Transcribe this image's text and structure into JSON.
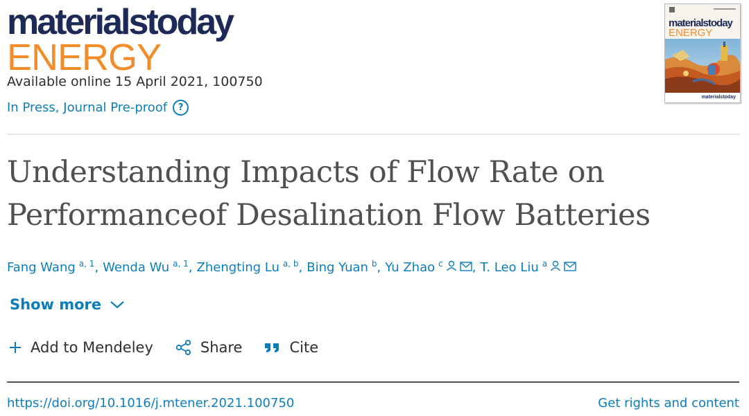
{
  "journal": {
    "logo_line1": "materialstoday",
    "logo_line2": "ENERGY",
    "available": "Available online 15 April 2021, 100750",
    "status": "In Press, Journal Pre-proof",
    "help_icon": "question-circle-icon",
    "colors": {
      "navy": "#1d2a57",
      "orange": "#f28c28",
      "link": "#0c7dbb"
    }
  },
  "cover": {
    "title_line1": "materialstoday",
    "title_line2": "ENERGY",
    "footer": "materialstoday"
  },
  "article": {
    "title_line1": "Understanding Impacts of Flow Rate on",
    "title_line2": "Performanceof Desalination Flow Batteries"
  },
  "authors": [
    {
      "name": "Fang Wang",
      "sup": "a, 1"
    },
    {
      "name": "Wenda Wu",
      "sup": "a, 1"
    },
    {
      "name": "Zhengting Lu",
      "sup": "a, b"
    },
    {
      "name": "Bing Yuan",
      "sup": "b"
    },
    {
      "name": "Yu Zhao",
      "sup": "c"
    },
    {
      "name": "T. Leo Liu",
      "sup": "a"
    }
  ],
  "show_more": "Show more",
  "actions": {
    "mendeley": "Add to Mendeley",
    "share": "Share",
    "cite": "Cite"
  },
  "footer": {
    "doi": "https://doi.org/10.1016/j.mtener.2021.100750",
    "rights": "Get rights and content"
  }
}
